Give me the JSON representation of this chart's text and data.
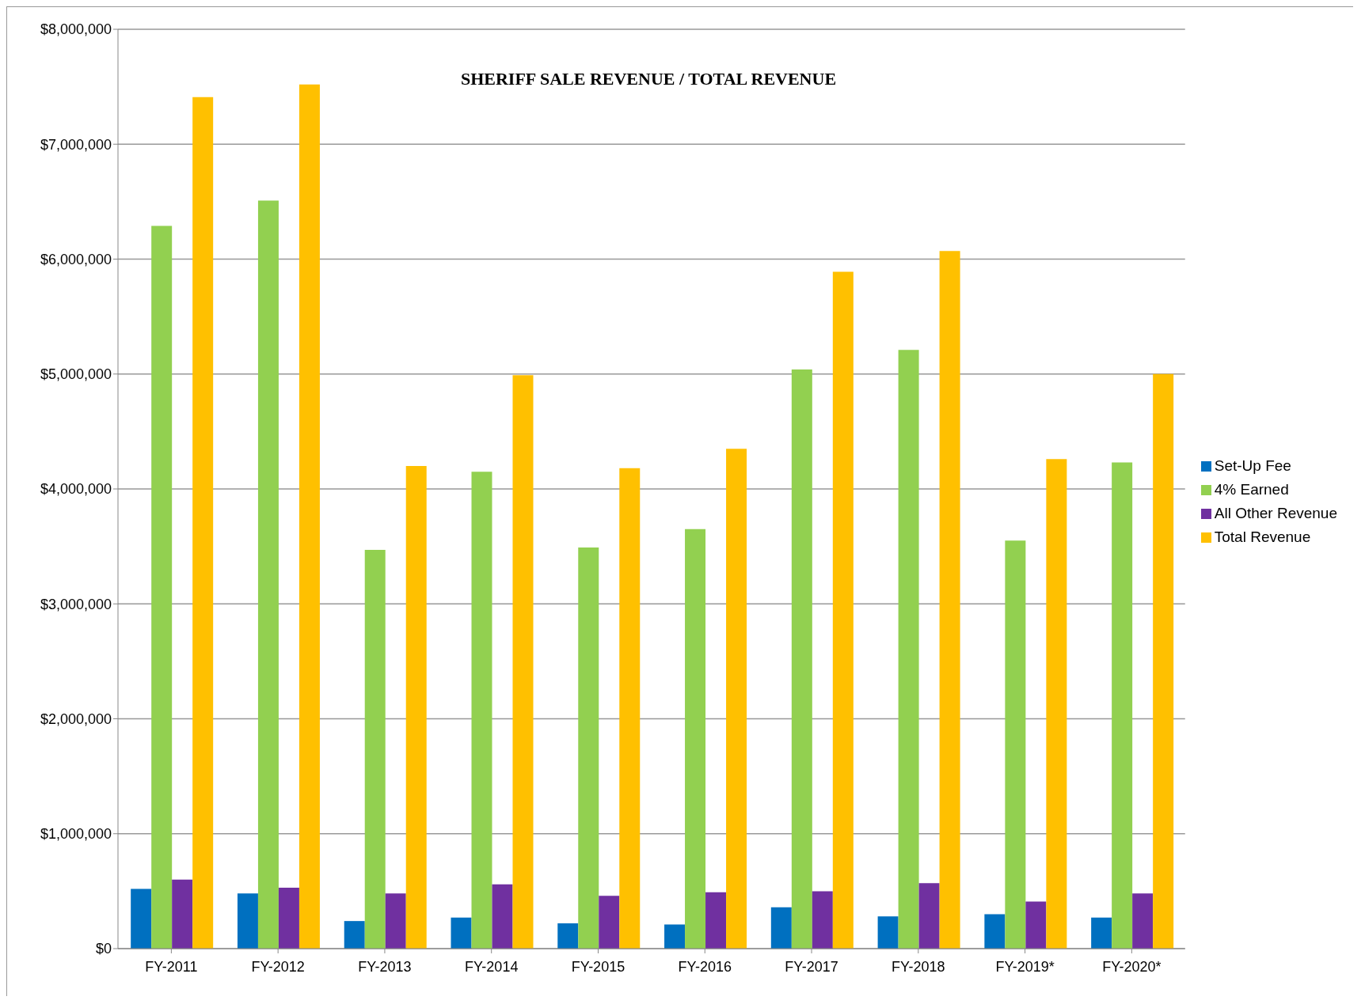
{
  "chart_data": {
    "type": "bar",
    "title": "SHERIFF SALE REVENUE / TOTAL REVENUE",
    "categories": [
      "FY-2011",
      "FY-2012",
      "FY-2013",
      "FY-2014",
      "FY-2015",
      "FY-2016",
      "FY-2017",
      "FY-2018",
      "FY-2019*",
      "FY-2020*"
    ],
    "series": [
      {
        "name": "Set-Up Fee",
        "color": "#0070c0",
        "values": [
          520000,
          480000,
          240000,
          270000,
          220000,
          210000,
          360000,
          280000,
          300000,
          270000
        ]
      },
      {
        "name": "4% Earned",
        "color": "#92d050",
        "values": [
          6290000,
          6510000,
          3470000,
          4150000,
          3490000,
          3650000,
          5040000,
          5210000,
          3550000,
          4230000
        ]
      },
      {
        "name": "All Other Revenue",
        "color": "#7030a0",
        "values": [
          600000,
          530000,
          480000,
          560000,
          460000,
          490000,
          500000,
          570000,
          410000,
          480000
        ]
      },
      {
        "name": "Total Revenue",
        "color": "#ffc000",
        "values": [
          7410000,
          7520000,
          4200000,
          4990000,
          4180000,
          4350000,
          5890000,
          6070000,
          4260000,
          5000000
        ]
      }
    ],
    "ylim": [
      0,
      8000000
    ],
    "yticks": [
      {
        "value": 0,
        "label": "$0"
      },
      {
        "value": 1000000,
        "label": "$1,000,000"
      },
      {
        "value": 2000000,
        "label": "$2,000,000"
      },
      {
        "value": 3000000,
        "label": "$3,000,000"
      },
      {
        "value": 4000000,
        "label": "$4,000,000"
      },
      {
        "value": 5000000,
        "label": "$5,000,000"
      },
      {
        "value": 6000000,
        "label": "$6,000,000"
      },
      {
        "value": 7000000,
        "label": "$7,000,000"
      },
      {
        "value": 8000000,
        "label": "$8,000,000"
      }
    ],
    "grid": "y",
    "legend": "right"
  }
}
